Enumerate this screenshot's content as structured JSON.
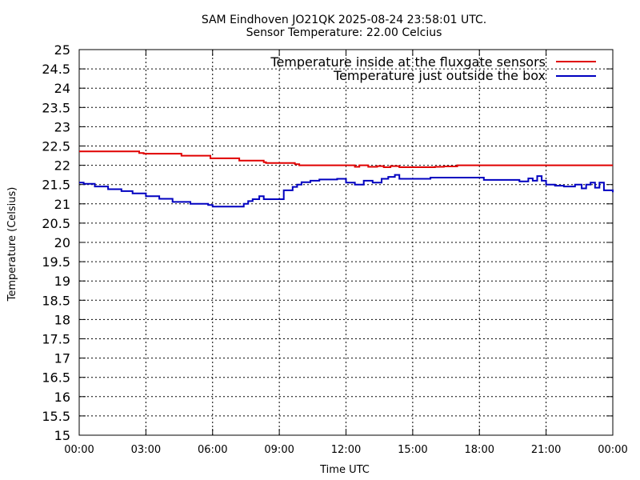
{
  "chart_data": {
    "type": "line",
    "title": "SAM Eindhoven JO21QK 2025-08-24 23:58:01 UTC.",
    "subtitle": "Sensor Temperature: 22.00 Celcius",
    "xlabel": "Time UTC",
    "ylabel": "Temperature (Celsius)",
    "xlim": [
      0,
      24
    ],
    "ylim": [
      15,
      25
    ],
    "x_tick_labels": [
      "00:00",
      "03:00",
      "06:00",
      "09:00",
      "12:00",
      "15:00",
      "18:00",
      "21:00",
      "00:00"
    ],
    "y_tick_labels": [
      "15",
      "15.5",
      "16",
      "16.5",
      "17",
      "17.5",
      "18",
      "18.5",
      "19",
      "19.5",
      "20",
      "20.5",
      "21",
      "21.5",
      "22",
      "22.5",
      "23",
      "23.5",
      "24",
      "24.5",
      "25"
    ],
    "grid": true,
    "legend_position": "top-right",
    "series": [
      {
        "name": "Temperature inside at the fluxgate sensors",
        "color": "#e00000",
        "step": true,
        "x": [
          0,
          2.6,
          2.7,
          2.9,
          4.4,
          4.6,
          5.8,
          5.9,
          7.0,
          7.2,
          8.1,
          8.3,
          8.4,
          9.5,
          9.7,
          9.9,
          10.5,
          11.5,
          12.2,
          12.4,
          12.6,
          13.0,
          13.4,
          13.7,
          14.0,
          14.4,
          15.0,
          15.6,
          16.0,
          16.4,
          17.0,
          17.5,
          18.0,
          20.0,
          22.0,
          24.0
        ],
        "y": [
          22.36,
          22.36,
          22.32,
          22.3,
          22.3,
          22.25,
          22.25,
          22.18,
          22.18,
          22.12,
          22.12,
          22.08,
          22.06,
          22.06,
          22.03,
          22.0,
          22.0,
          22.0,
          22.0,
          21.96,
          22.0,
          21.96,
          21.98,
          21.95,
          21.98,
          21.95,
          21.95,
          21.95,
          21.96,
          21.97,
          22.0,
          22.0,
          22.0,
          22.0,
          22.0,
          22.0
        ]
      },
      {
        "name": "Temperature just outside the box",
        "color": "#0000c0",
        "step": true,
        "x": [
          0,
          0.2,
          0.7,
          1.3,
          1.9,
          2.4,
          3.0,
          3.6,
          4.2,
          5.0,
          5.8,
          6.0,
          7.2,
          7.4,
          7.6,
          7.8,
          8.1,
          8.3,
          9.0,
          9.2,
          9.6,
          9.8,
          10.0,
          10.4,
          10.8,
          11.6,
          12.0,
          12.4,
          12.8,
          13.2,
          13.6,
          13.9,
          14.2,
          14.4,
          15.0,
          15.4,
          15.8,
          16.4,
          17.4,
          18.2,
          19.4,
          19.8,
          20.2,
          20.4,
          20.6,
          20.8,
          21.0,
          21.4,
          21.8,
          22.3,
          22.6,
          22.8,
          23.0,
          23.2,
          23.4,
          23.6,
          24.0
        ],
        "y": [
          21.55,
          21.52,
          21.45,
          21.38,
          21.33,
          21.27,
          21.2,
          21.13,
          21.05,
          21.0,
          20.97,
          20.93,
          20.93,
          21.0,
          21.07,
          21.12,
          21.2,
          21.12,
          21.12,
          21.35,
          21.44,
          21.5,
          21.56,
          21.6,
          21.63,
          21.65,
          21.55,
          21.5,
          21.6,
          21.55,
          21.65,
          21.7,
          21.75,
          21.65,
          21.65,
          21.65,
          21.68,
          21.68,
          21.68,
          21.62,
          21.62,
          21.58,
          21.66,
          21.6,
          21.72,
          21.6,
          21.5,
          21.47,
          21.45,
          21.5,
          21.4,
          21.5,
          21.55,
          21.42,
          21.55,
          21.35,
          21.3
        ]
      }
    ]
  }
}
